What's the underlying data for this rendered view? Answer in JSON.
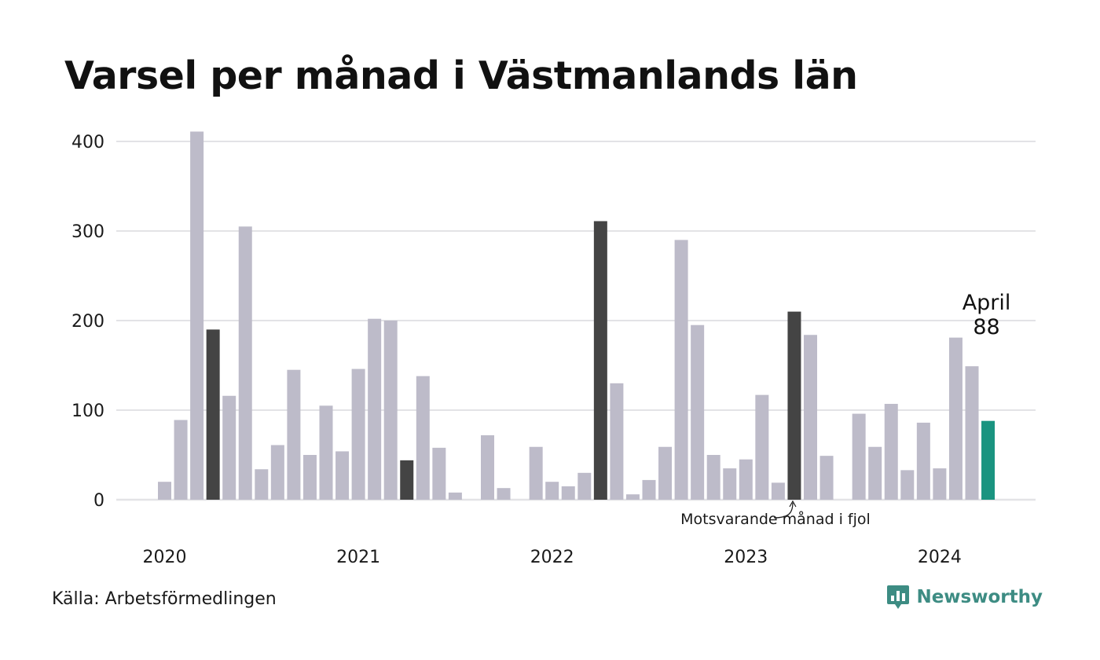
{
  "title": "Varsel per månad i Västmanlands län",
  "source": "Källa: Arbetsförmedlingen",
  "brand": {
    "name": "Newsworthy",
    "icon": "newsworthy-logo-icon",
    "color": "#3d8c83"
  },
  "colors": {
    "bar_default": "#bdbbc9",
    "bar_same_month_last_year": "#444444",
    "bar_current": "#1a9480",
    "grid": "#e3e3e6"
  },
  "annotations": {
    "current_month_label": "April",
    "current_month_value": "88",
    "same_month_last_year": "Motsvarande månad i fjol"
  },
  "chart_data": {
    "type": "bar",
    "title": "Varsel per månad i Västmanlands län",
    "xlabel": "",
    "ylabel": "",
    "ylim": [
      0,
      400
    ],
    "yticks": [
      0,
      100,
      200,
      300,
      400
    ],
    "grid": true,
    "year_labels": [
      {
        "label": "2020",
        "index": 0
      },
      {
        "label": "2021",
        "index": 12
      },
      {
        "label": "2022",
        "index": 24
      },
      {
        "label": "2023",
        "index": 36
      },
      {
        "label": "2024",
        "index": 48
      }
    ],
    "months": [
      "2020-01",
      "2020-02",
      "2020-03",
      "2020-04",
      "2020-05",
      "2020-06",
      "2020-07",
      "2020-08",
      "2020-09",
      "2020-10",
      "2020-11",
      "2020-12",
      "2021-01",
      "2021-02",
      "2021-03",
      "2021-04",
      "2021-05",
      "2021-06",
      "2021-07",
      "2021-08",
      "2021-09",
      "2021-10",
      "2021-11",
      "2021-12",
      "2022-01",
      "2022-02",
      "2022-03",
      "2022-04",
      "2022-05",
      "2022-06",
      "2022-07",
      "2022-08",
      "2022-09",
      "2022-10",
      "2022-11",
      "2022-12",
      "2023-01",
      "2023-02",
      "2023-03",
      "2023-04",
      "2023-05",
      "2023-06",
      "2023-07",
      "2023-08",
      "2023-09",
      "2023-10",
      "2023-11",
      "2023-12",
      "2024-01",
      "2024-02",
      "2024-03",
      "2024-04"
    ],
    "values": [
      20,
      89,
      411,
      190,
      116,
      305,
      34,
      61,
      145,
      50,
      105,
      54,
      146,
      202,
      200,
      44,
      138,
      58,
      8,
      0,
      72,
      13,
      0,
      59,
      20,
      15,
      30,
      311,
      130,
      6,
      22,
      59,
      290,
      195,
      50,
      35,
      45,
      117,
      19,
      210,
      184,
      49,
      0,
      96,
      59,
      107,
      33,
      86,
      35,
      181,
      149,
      88
    ],
    "highlight_same_month_last_year": [
      3,
      15,
      27,
      39
    ],
    "highlight_current": 51
  }
}
